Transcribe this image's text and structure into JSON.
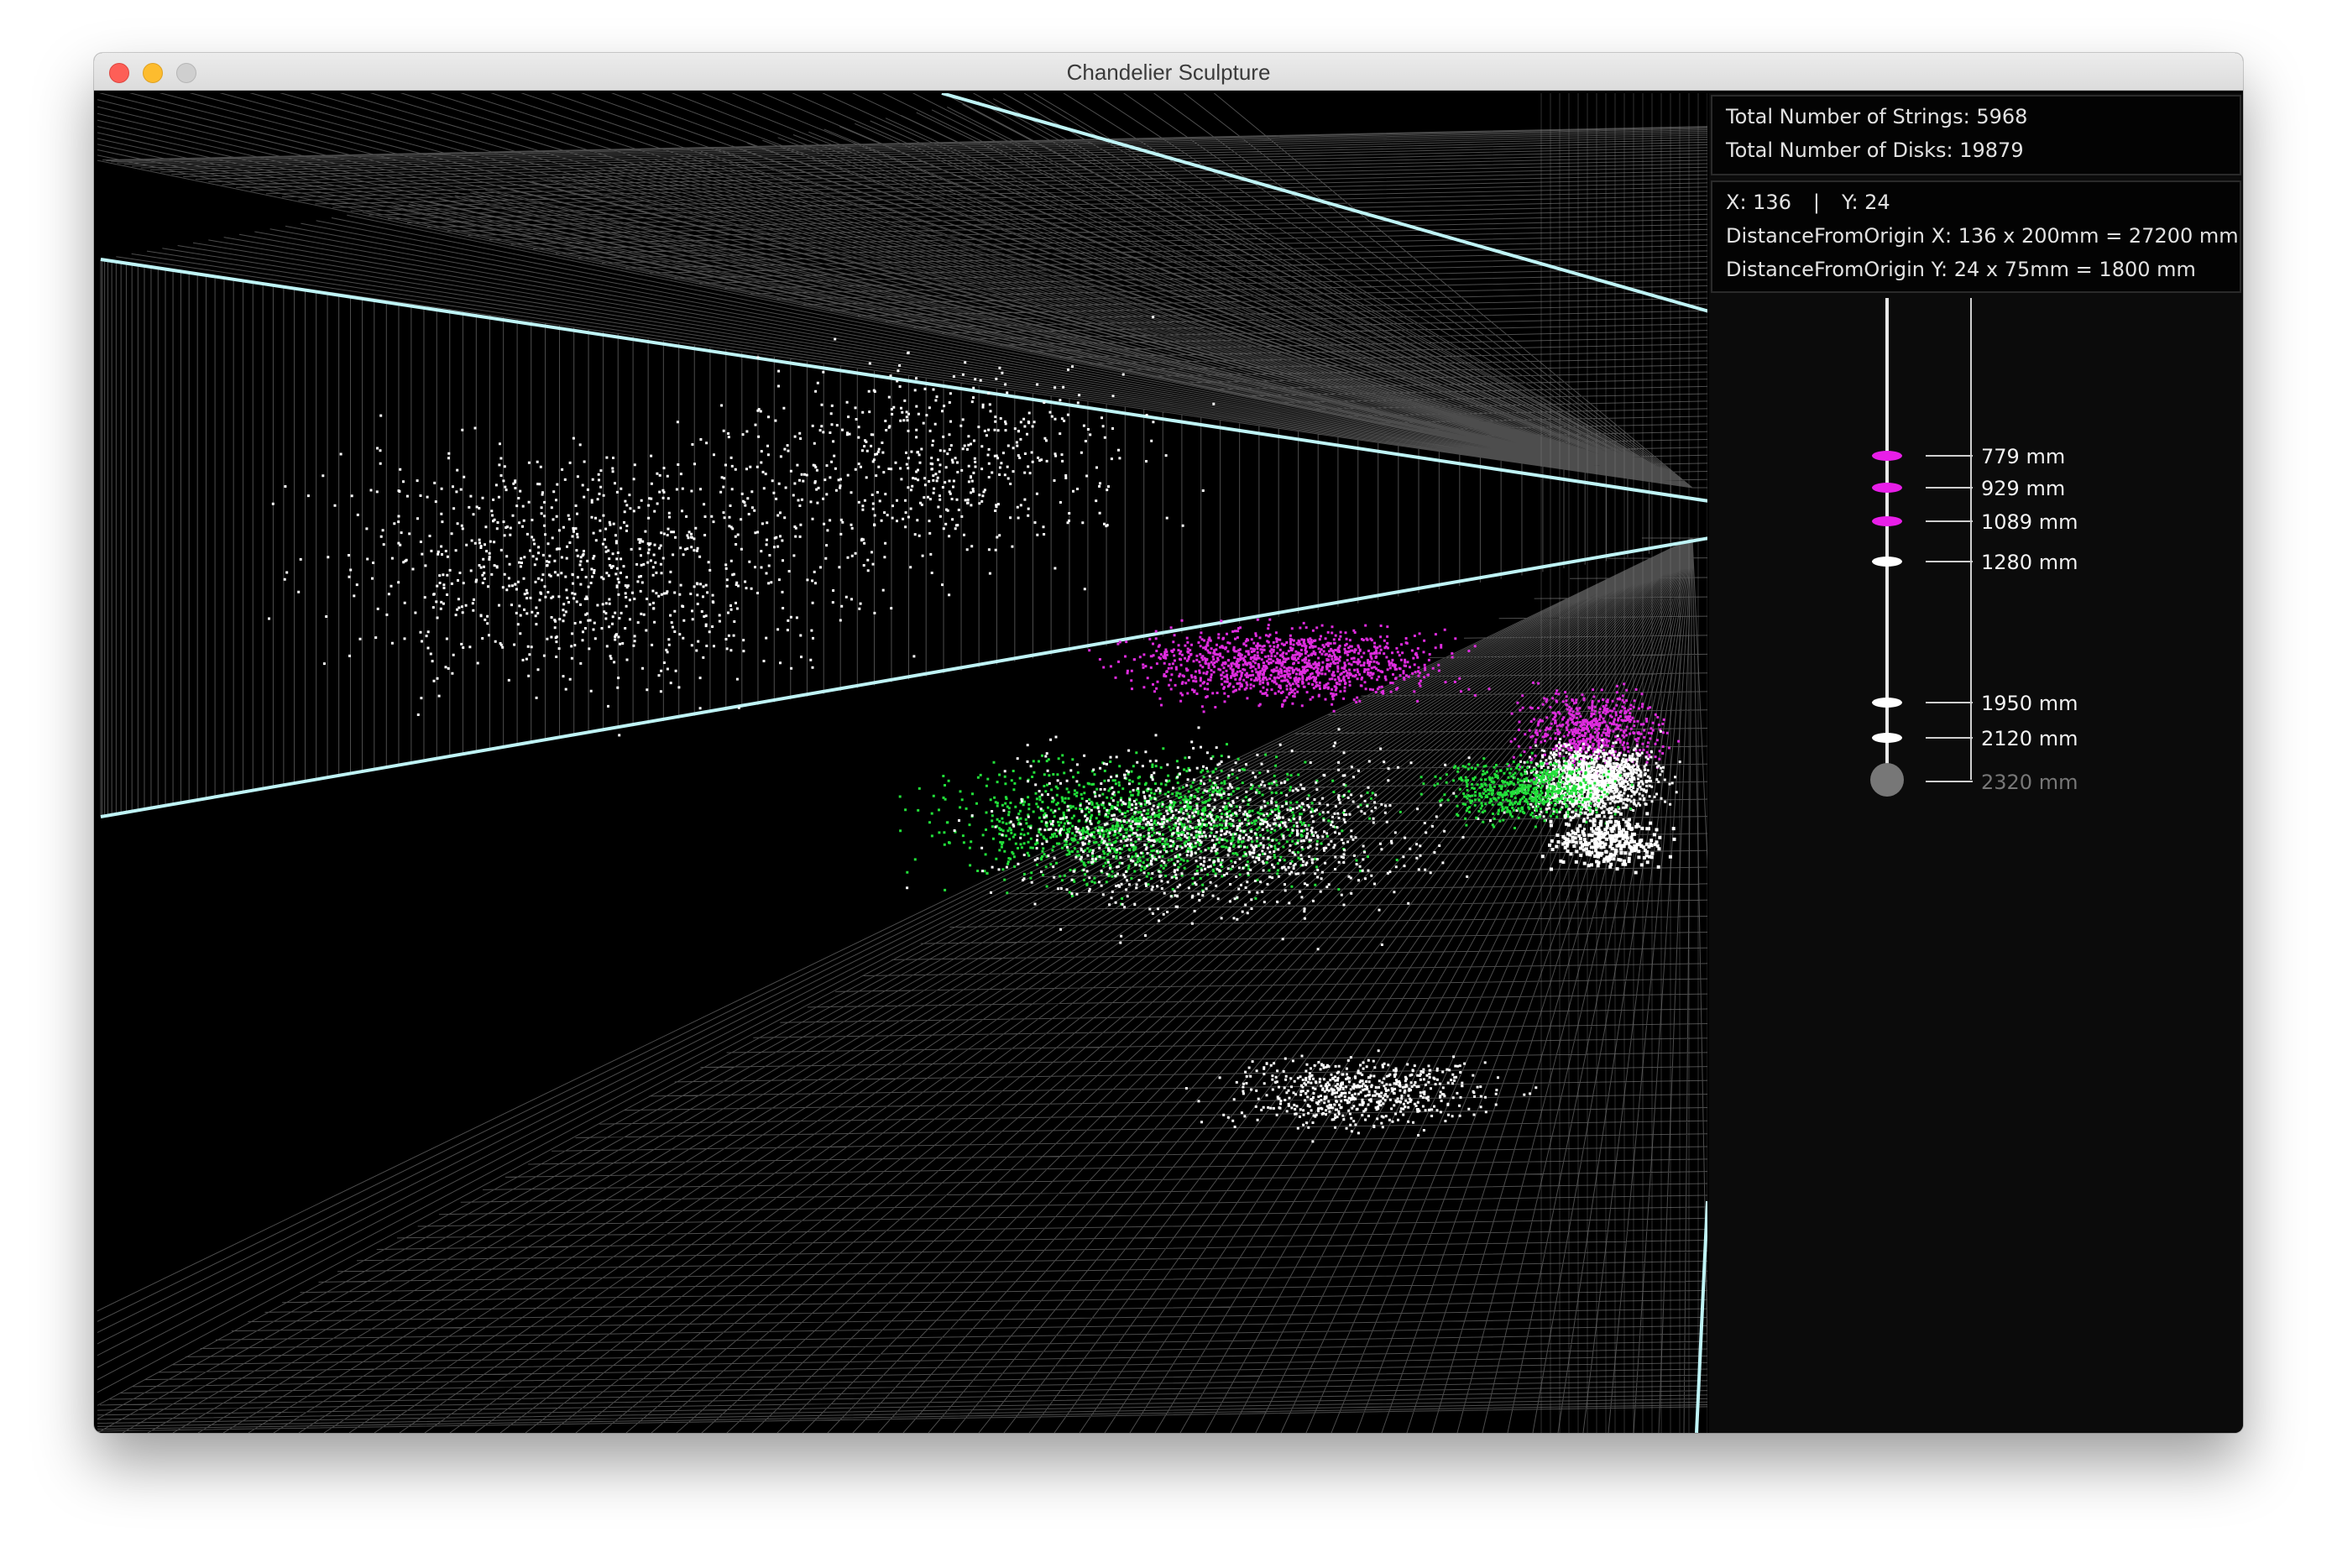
{
  "window": {
    "title": "Chandelier Sculpture"
  },
  "stats": {
    "strings_label": "Total Number of Strings: 5968",
    "disks_label": "Total Number of Disks: 19879"
  },
  "coords": {
    "x_label": "X: 136",
    "separator": "|",
    "y_label": "Y: 24",
    "distance_x": "DistanceFromOrigin X: 136 x 200mm = 27200 mm",
    "distance_y": "DistanceFromOrigin Y: 24 x 75mm = 1800 mm"
  },
  "disk_levels": [
    {
      "label": "779 mm",
      "color": "#e81ee8",
      "state": "active"
    },
    {
      "label": "929 mm",
      "color": "#e81ee8",
      "state": "active"
    },
    {
      "label": "1089 mm",
      "color": "#e81ee8",
      "state": "active"
    },
    {
      "label": "1280 mm",
      "color": "#ffffff",
      "state": "normal"
    },
    {
      "label": "1950 mm",
      "color": "#ffffff",
      "state": "normal"
    },
    {
      "label": "2120 mm",
      "color": "#ffffff",
      "state": "normal"
    },
    {
      "label": "2320 mm",
      "color": "#777777",
      "state": "disabled"
    }
  ],
  "colors": {
    "grid": "#8c8c8c",
    "edge": "#bff4f6",
    "disk_white": "#ffffff",
    "disk_green": "#22e03a",
    "disk_magenta": "#df2cdf"
  }
}
